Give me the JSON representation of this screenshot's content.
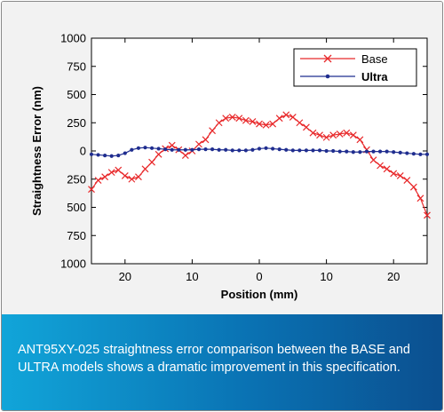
{
  "chart_data": {
    "type": "line",
    "xlabel": "Position (mm)",
    "ylabel": "Straightness Error (nm)",
    "xlim": [
      -25,
      25
    ],
    "ylim": [
      -1000,
      1000
    ],
    "x_ticks": [
      -20,
      -10,
      0,
      10,
      20
    ],
    "x_tick_labels": [
      "20",
      "10",
      "0",
      "10",
      "20"
    ],
    "y_ticks": [
      1000,
      750,
      500,
      250,
      0,
      -250,
      -500,
      -750,
      -1000
    ],
    "y_tick_labels": [
      "1000",
      "750",
      "500",
      "250",
      "0",
      "250",
      "500",
      "750",
      "1000"
    ],
    "grid": false,
    "legend_position": "top-right",
    "series": [
      {
        "name": "Base",
        "color": "#e8292b",
        "marker": "x",
        "x": [
          -25,
          -24,
          -23,
          -22,
          -21,
          -20,
          -19,
          -18,
          -17,
          -16,
          -15,
          -14,
          -13,
          -12,
          -11,
          -10,
          -9,
          -8,
          -7,
          -6,
          -5,
          -4,
          -3,
          -2,
          -1,
          0,
          1,
          2,
          3,
          4,
          5,
          6,
          7,
          8,
          9,
          10,
          11,
          12,
          13,
          14,
          15,
          16,
          17,
          18,
          19,
          20,
          21,
          22,
          23,
          24,
          25
        ],
        "values": [
          -340,
          -260,
          -230,
          -190,
          -170,
          -220,
          -250,
          -230,
          -160,
          -100,
          -30,
          20,
          50,
          10,
          -40,
          0,
          60,
          100,
          180,
          250,
          290,
          300,
          290,
          270,
          260,
          240,
          230,
          240,
          290,
          320,
          300,
          250,
          210,
          160,
          140,
          120,
          140,
          150,
          160,
          140,
          100,
          10,
          -80,
          -130,
          -160,
          -200,
          -220,
          -260,
          -320,
          -420,
          -570
        ]
      },
      {
        "name": "Ultra",
        "color": "#1f2d8f",
        "marker": "dot",
        "x": [
          -25,
          -24,
          -23,
          -22,
          -21,
          -20,
          -19,
          -18,
          -17,
          -16,
          -15,
          -14,
          -13,
          -12,
          -11,
          -10,
          -9,
          -8,
          -7,
          -6,
          -5,
          -4,
          -3,
          -2,
          -1,
          0,
          1,
          2,
          3,
          4,
          5,
          6,
          7,
          8,
          9,
          10,
          11,
          12,
          13,
          14,
          15,
          16,
          17,
          18,
          19,
          20,
          21,
          22,
          23,
          24,
          25
        ],
        "values": [
          -30,
          -35,
          -40,
          -45,
          -40,
          -20,
          10,
          25,
          30,
          25,
          20,
          15,
          10,
          10,
          10,
          10,
          15,
          15,
          15,
          10,
          10,
          5,
          5,
          5,
          10,
          20,
          25,
          20,
          15,
          10,
          5,
          5,
          5,
          5,
          5,
          0,
          0,
          -5,
          -5,
          -10,
          -10,
          -5,
          -5,
          -5,
          -5,
          -10,
          -15,
          -20,
          -25,
          -30,
          -30
        ]
      }
    ]
  },
  "caption": {
    "text": "ANT95XY-025 straightness error comparison between the BASE and ULTRA models shows a dramatic improvement in this specification."
  }
}
